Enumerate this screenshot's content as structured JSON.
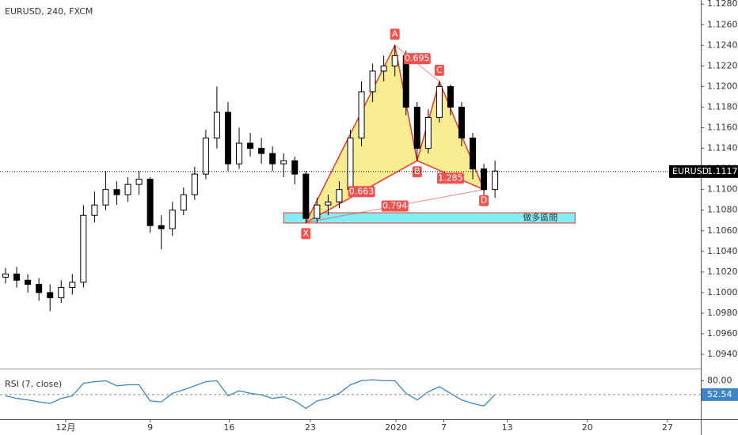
{
  "chart_data": [
    {
      "type": "candlestick",
      "title": "EURUSD, 240, FXCM",
      "symbol": "EURUSD",
      "last_price": 1.11175,
      "xlim": [
        -0.5,
        62.5
      ],
      "xticks": [
        {
          "value": 5.4,
          "label": "12月"
        },
        {
          "value": 13,
          "label": "9"
        },
        {
          "value": 20.1,
          "label": "16"
        },
        {
          "value": 27.4,
          "label": "23"
        },
        {
          "value": 35.1,
          "label": "2020"
        },
        {
          "value": 39.4,
          "label": "7"
        },
        {
          "value": 45.1,
          "label": "13"
        },
        {
          "value": 52.3,
          "label": "20"
        },
        {
          "value": 59.5,
          "label": "27"
        }
      ],
      "ylim": [
        1.0927,
        1.1284
      ],
      "yticks": [
        {
          "value": 1.094,
          "label": "1.09400"
        },
        {
          "value": 1.096,
          "label": "1.09600"
        },
        {
          "value": 1.098,
          "label": "1.09800"
        },
        {
          "value": 1.1,
          "label": "1.10000"
        },
        {
          "value": 1.102,
          "label": "1.10200"
        },
        {
          "value": 1.104,
          "label": "1.10400"
        },
        {
          "value": 1.106,
          "label": "1.10600"
        },
        {
          "value": 1.108,
          "label": "1.10800"
        },
        {
          "value": 1.11,
          "label": "1.11000"
        },
        {
          "value": 1.112,
          "label": "1.11200"
        },
        {
          "value": 1.114,
          "label": "1.11400"
        },
        {
          "value": 1.116,
          "label": "1.11600"
        },
        {
          "value": 1.118,
          "label": "1.11800"
        },
        {
          "value": 1.12,
          "label": "1.12000"
        },
        {
          "value": 1.122,
          "label": "1.12200"
        },
        {
          "value": 1.124,
          "label": "1.12400"
        },
        {
          "value": 1.126,
          "label": "1.12600"
        },
        {
          "value": 1.128,
          "label": "1.12800"
        }
      ],
      "up_color": "#ffffff",
      "down_color": "#000000",
      "open": [
        1.1015,
        1.1018,
        1.1012,
        1.1008,
        1.1,
        1.0995,
        1.1005,
        1.101,
        1.1075,
        1.1085,
        1.11,
        1.1095,
        1.1105,
        1.111,
        1.1065,
        1.1062,
        1.108,
        1.1095,
        1.1115,
        1.115,
        1.1175,
        1.1125,
        1.1145,
        1.114,
        1.1135,
        1.1125,
        1.1128,
        1.1115,
        1.1072,
        1.1085,
        1.1088,
        1.11,
        1.115,
        1.1195,
        1.1215,
        1.122,
        1.123,
        1.118,
        1.114,
        1.117,
        1.12,
        1.118,
        1.115,
        1.112,
        1.11
      ],
      "high": [
        1.1024,
        1.1025,
        1.1018,
        1.1014,
        1.1008,
        1.1012,
        1.1018,
        1.1085,
        1.1098,
        1.1118,
        1.1108,
        1.1112,
        1.1118,
        1.1112,
        1.1075,
        1.1088,
        1.1102,
        1.1122,
        1.1158,
        1.12,
        1.1185,
        1.116,
        1.1155,
        1.115,
        1.1142,
        1.1135,
        1.1132,
        1.1118,
        1.1092,
        1.1095,
        1.1108,
        1.1158,
        1.1205,
        1.1222,
        1.123,
        1.124,
        1.1235,
        1.1185,
        1.1178,
        1.1205,
        1.1202,
        1.1185,
        1.1155,
        1.1125,
        1.1128
      ],
      "low": [
        1.1009,
        1.1005,
        1.1,
        1.0992,
        1.0982,
        1.099,
        1.0998,
        1.1005,
        1.1068,
        1.108,
        1.1085,
        1.1088,
        1.1095,
        1.1058,
        1.1042,
        1.1055,
        1.1075,
        1.109,
        1.111,
        1.114,
        1.1118,
        1.112,
        1.1132,
        1.1125,
        1.1118,
        1.1112,
        1.1105,
        1.1068,
        1.1068,
        1.1075,
        1.1082,
        1.1095,
        1.1142,
        1.1185,
        1.1205,
        1.121,
        1.1172,
        1.1128,
        1.1135,
        1.1165,
        1.1172,
        1.1142,
        1.111,
        1.1088,
        1.1092
      ],
      "close": [
        1.1018,
        1.1012,
        1.1008,
        1.1,
        1.0995,
        1.1005,
        1.101,
        1.1075,
        1.1085,
        1.11,
        1.1095,
        1.1105,
        1.111,
        1.1065,
        1.1062,
        1.108,
        1.1095,
        1.1115,
        1.115,
        1.1175,
        1.1125,
        1.1145,
        1.114,
        1.1135,
        1.1125,
        1.1128,
        1.1115,
        1.1072,
        1.1085,
        1.1088,
        1.11,
        1.115,
        1.1195,
        1.1215,
        1.122,
        1.123,
        1.118,
        1.114,
        1.117,
        1.12,
        1.118,
        1.115,
        1.112,
        1.11,
        1.1118
      ],
      "pattern": {
        "fill": "#f6e66b",
        "stroke": "#e53935",
        "points": [
          {
            "label": "X",
            "x": 27,
            "y": 1.1068
          },
          {
            "label": "A",
            "x": 35,
            "y": 1.124
          },
          {
            "label": "B",
            "x": 37,
            "y": 1.1128
          },
          {
            "label": "C",
            "x": 39,
            "y": 1.1205
          },
          {
            "label": "D",
            "x": 43,
            "y": 1.11
          }
        ],
        "ratios": [
          0.695,
          0.663,
          1.285,
          0.794
        ]
      },
      "zone": {
        "label": "做多區間",
        "color": "#84eef5",
        "x": [
          25,
          51.2
        ],
        "y": [
          1.10675,
          1.10775
        ]
      }
    },
    {
      "type": "line",
      "title": "RSI (7, close)",
      "color": "#3d85c6",
      "ylim": [
        10,
        90
      ],
      "yticks": [
        {
          "value": 80,
          "label": "80.00"
        }
      ],
      "values": [
        50,
        45,
        42,
        38,
        35,
        45,
        50,
        75,
        78,
        80,
        70,
        72,
        72,
        40,
        38,
        55,
        62,
        70,
        78,
        80,
        50,
        60,
        55,
        52,
        45,
        48,
        40,
        25,
        40,
        45,
        55,
        72,
        80,
        82,
        80,
        80,
        55,
        42,
        58,
        68,
        55,
        42,
        35,
        30,
        52.54
      ]
    }
  ]
}
